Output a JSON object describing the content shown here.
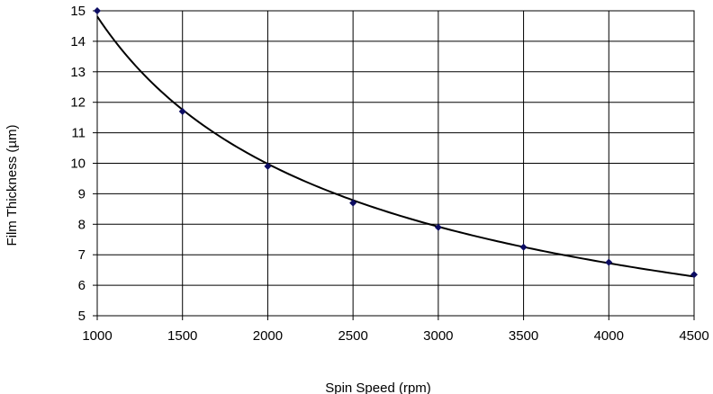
{
  "chart_data": {
    "type": "scatter",
    "title": "",
    "xlabel": "Spin Speed (rpm)",
    "ylabel": "Film Thickness (µm)",
    "xlim": [
      1000,
      4500
    ],
    "ylim": [
      5,
      15
    ],
    "x_ticks": [
      1000,
      1500,
      2000,
      2500,
      3000,
      3500,
      4000,
      4500
    ],
    "y_ticks": [
      5,
      6,
      7,
      8,
      9,
      10,
      11,
      12,
      13,
      14,
      15
    ],
    "grid": true,
    "legend": "none",
    "marker_color": "#0d0d63",
    "line_color": "#000000",
    "trendline": "power",
    "series": [
      {
        "x": [
          1000,
          1500,
          2000,
          2500,
          3000,
          3500,
          4000,
          4500
        ],
        "y": [
          15.0,
          11.7,
          9.9,
          8.7,
          7.9,
          7.25,
          6.75,
          6.35
        ]
      }
    ]
  }
}
